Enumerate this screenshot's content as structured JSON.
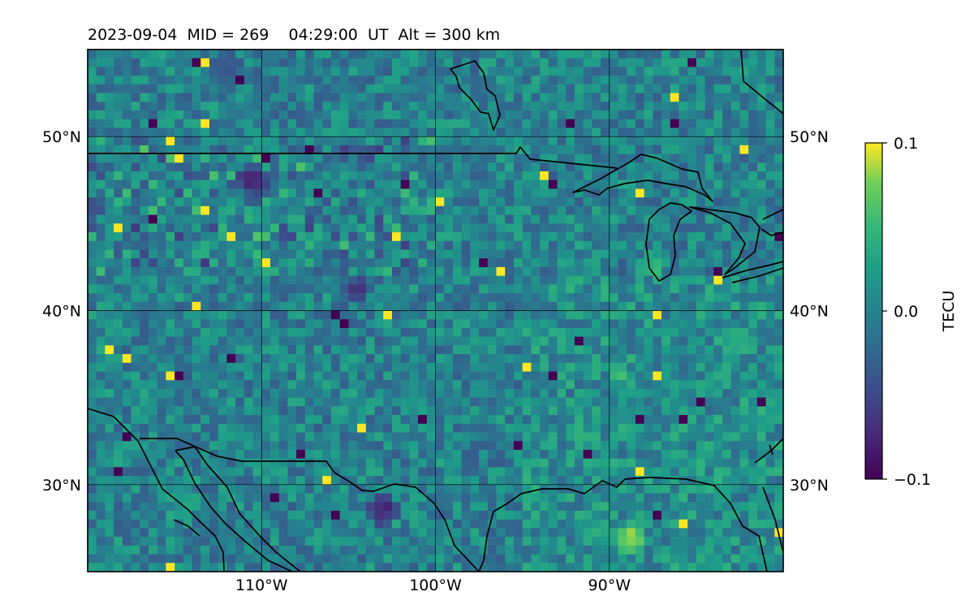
{
  "figure": {
    "title": "2023-09-04  MID = 269    04:29:00  UT  Alt = 300 km"
  },
  "map": {
    "projection": "equirectangular",
    "lon_range": [
      -120,
      -80
    ],
    "lat_range": [
      25,
      55
    ],
    "grid": true,
    "lat_ticks": [
      {
        "value": 50,
        "label": "50°N"
      },
      {
        "value": 40,
        "label": "40°N"
      },
      {
        "value": 30,
        "label": "30°N"
      }
    ],
    "lon_ticks": [
      {
        "value": -110,
        "label": "110°W"
      },
      {
        "value": -100,
        "label": "100°W"
      },
      {
        "value": -90,
        "label": "90°W"
      }
    ],
    "features": [
      "coastlines",
      "country borders",
      "Great Lakes"
    ]
  },
  "colorbar": {
    "label": "TECU",
    "colormap": "viridis",
    "min": -0.1,
    "max": 0.1,
    "ticks": [
      {
        "value": 0.1,
        "label": "0.1"
      },
      {
        "value": 0.0,
        "label": "0.0"
      },
      {
        "value": -0.1,
        "label": "−0.1"
      }
    ]
  },
  "chart_data": {
    "type": "heatmap",
    "title": "2023-09-04  MID = 269    04:29:00  UT  Alt = 300 km",
    "xlabel": "",
    "ylabel": "",
    "xlim": [
      -120,
      -80
    ],
    "ylim": [
      25,
      55
    ],
    "colorbar_label": "TECU",
    "clim": [
      -0.1,
      0.1
    ],
    "background_level": 0.0,
    "noise_amplitude": 0.035,
    "grid_resolution_deg": 0.5,
    "features": [
      {
        "name": "negative-patch-montana",
        "lon": -110.5,
        "lat": 47.5,
        "value": -0.1,
        "radius_deg": 1.0
      },
      {
        "name": "negative-patch-texas-mexico",
        "lon": -103,
        "lat": 28.5,
        "value": -0.1,
        "radius_deg": 1.0
      },
      {
        "name": "negative-patch-colorado",
        "lon": -104.5,
        "lat": 41.2,
        "value": -0.09,
        "radius_deg": 0.8
      },
      {
        "name": "negative-patch-canada-top",
        "lon": -112,
        "lat": 54,
        "value": -0.06,
        "radius_deg": 1.0
      },
      {
        "name": "positive-patch-gulf",
        "lon": -88.8,
        "lat": 27,
        "value": 0.1,
        "radius_deg": 1.0
      },
      {
        "name": "positive-patch-wyoming",
        "lon": -110,
        "lat": 44.3,
        "value": 0.1,
        "radius_deg": 0.5
      },
      {
        "name": "positive-patch-michigan",
        "lon": -87.5,
        "lat": 42.5,
        "value": 0.08,
        "radius_deg": 0.5
      },
      {
        "name": "positive-patch-arkansas",
        "lon": -89.5,
        "lat": 36.5,
        "value": 0.09,
        "radius_deg": 0.5
      }
    ]
  }
}
